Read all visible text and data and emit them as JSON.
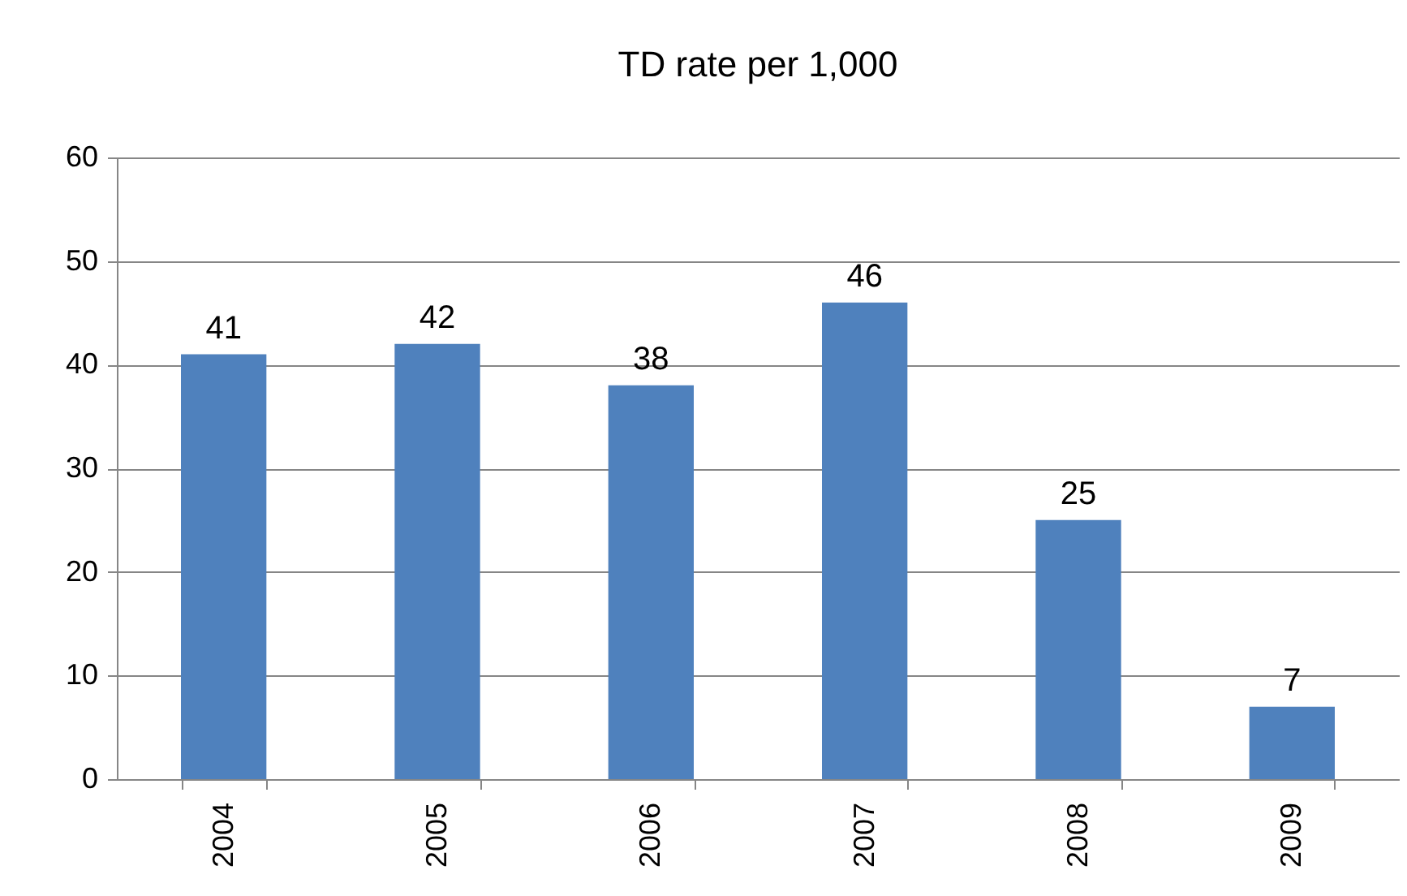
{
  "chart_data": {
    "type": "bar",
    "title": "TD rate per 1,000",
    "categories": [
      "2004",
      "2005",
      "2006",
      "2007",
      "2008",
      "2009"
    ],
    "values": [
      41,
      42,
      38,
      46,
      25,
      7
    ],
    "color": "#4f81bd",
    "ylim": [
      0,
      60
    ],
    "yticks": [
      0,
      10,
      20,
      30,
      40,
      50,
      60
    ],
    "grid": "y",
    "data_labels": true
  }
}
